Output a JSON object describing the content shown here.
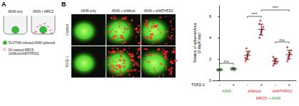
{
  "panel_a": {
    "label": "A",
    "wells": [
      "A549 only",
      "A549 + MRC5"
    ],
    "legend": [
      {
        "lines": [
          "PLVTHM infected A549 spheroid"
        ],
        "color": "#3cb83c"
      },
      {
        "lines": [
          "DiI stained MRC5",
          "(shMock/shMTHFD2)"
        ],
        "color": "#e0202a"
      }
    ]
  },
  "panel_b": {
    "label": "B",
    "columns": [
      "A549 only",
      "A549 + shMock",
      "A549 + shMTHFD2"
    ],
    "rows": [
      "Control",
      "TGFβ-1"
    ]
  },
  "chart_data": {
    "type": "scatter",
    "y_label": [
      "Relative of spheroid Area",
      "(3 day/0 day)"
    ],
    "x_row_label": "TGFβ-1",
    "categories": [
      "-",
      "+",
      "-",
      "+",
      "-",
      "+"
    ],
    "ylim": [
      0,
      7
    ],
    "yticks": [
      0,
      2,
      4,
      6
    ],
    "grid": false,
    "series": [
      {
        "name": "A549",
        "color": "#3a9a3a",
        "marker": "open_circle",
        "groups": [
          {
            "values": [
              0.9,
              1.0,
              1.05,
              1.1,
              0.95,
              1.0
            ],
            "mean": 1.0,
            "sd": 0.07
          },
          {
            "values": [
              1.0,
              1.1,
              1.2,
              0.95,
              1.05,
              1.15
            ],
            "mean": 1.08,
            "sd": 0.09
          }
        ]
      },
      {
        "name": "shMock",
        "color": "#e0202a",
        "marker": "circle",
        "groups": [
          {
            "values": [
              1.8,
              2.0,
              2.2,
              2.5,
              2.7,
              2.1,
              3.0,
              2.4
            ],
            "mean": 2.34,
            "sd": 0.38
          },
          {
            "values": [
              4.0,
              4.3,
              4.6,
              4.8,
              5.0,
              5.3,
              5.6,
              4.5
            ],
            "mean": 4.76,
            "sd": 0.5
          }
        ]
      },
      {
        "name": "shMTHFD2",
        "color": "#e0202a",
        "marker": "circle",
        "groups": [
          {
            "values": [
              1.4,
              1.6,
              1.8,
              2.0,
              1.7,
              2.2,
              1.9
            ],
            "mean": 1.8,
            "sd": 0.26
          },
          {
            "values": [
              1.8,
              2.0,
              2.3,
              2.5,
              2.8,
              3.1,
              2.2,
              2.6
            ],
            "mean": 2.41,
            "sd": 0.41
          }
        ]
      }
    ],
    "footer": [
      "MRC5",
      "+ A549"
    ],
    "significance": [
      {
        "from": 0,
        "to": 1,
        "y": 1.6,
        "text": "n.s."
      },
      {
        "from": 2,
        "to": 3,
        "y": 6.0,
        "text": "****"
      },
      {
        "from": 3,
        "to": 5,
        "y": 6.6,
        "text": "****"
      },
      {
        "from": 4,
        "to": 5,
        "y": 3.6,
        "text": "n.s."
      }
    ]
  }
}
